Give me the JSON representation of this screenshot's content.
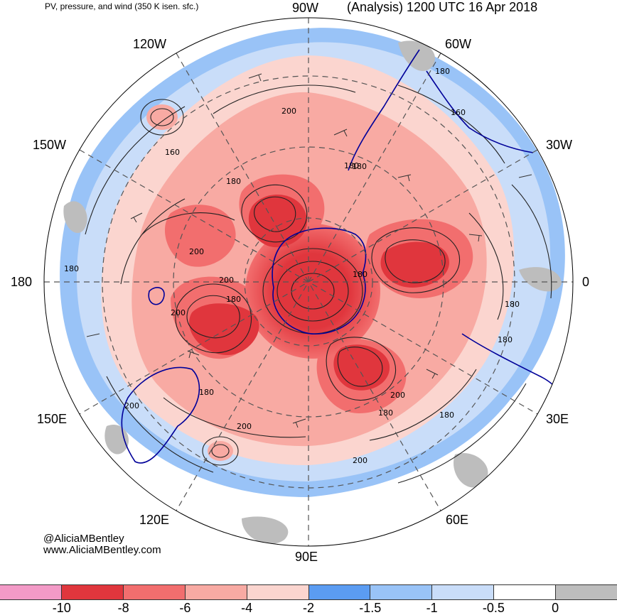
{
  "header": {
    "left_title": "PV, pressure, and wind (350 K isen. sfc.)",
    "right_title": "(Analysis) 1200 UTC 16 Apr 2018"
  },
  "map": {
    "projection": "south-polar-stereographic",
    "longitude_labels": {
      "n90w": "90W",
      "n60w": "60W",
      "n30w": "30W",
      "n0": "0",
      "n30e": "30E",
      "n60e": "60E",
      "n90e": "90E",
      "n120e": "120E",
      "n150e": "150E",
      "n180": "180",
      "n150w": "150W",
      "n120w": "120W"
    },
    "contour_labels": {
      "c1": "180",
      "c2": "200",
      "c3": "160",
      "c4": "180",
      "c5": "200",
      "c6": "180",
      "c7": "180",
      "c8": "200",
      "c9": "180",
      "c10": "180",
      "c11": "200",
      "c12": "180",
      "c13": "200",
      "c14": "180",
      "c15": "200",
      "c16": "180",
      "c17": "200",
      "c18": "160",
      "c19": "180",
      "c20": "180",
      "c21": "200",
      "c22": "180"
    },
    "colors": {
      "coastline": "#000099",
      "grid": "#555555",
      "contour": "#222222"
    }
  },
  "credit": {
    "handle": "@AliciaMBentley",
    "website": "www.AliciaMBentley.com"
  },
  "colorbar": {
    "boxes": [
      {
        "color": "#f39ac7"
      },
      {
        "color": "#e0363d"
      },
      {
        "color": "#f26e6e"
      },
      {
        "color": "#f8aaa3"
      },
      {
        "color": "#fbd5cf"
      },
      {
        "color": "#5b9cf2"
      },
      {
        "color": "#99c3f7"
      },
      {
        "color": "#c9ddf9"
      },
      {
        "color": "#ffffff"
      },
      {
        "color": "#bdbdbd"
      }
    ],
    "labels": [
      "-10",
      "-8",
      "-6",
      "-4",
      "-2",
      "-1.5",
      "-1",
      "-0.5",
      "0"
    ]
  }
}
